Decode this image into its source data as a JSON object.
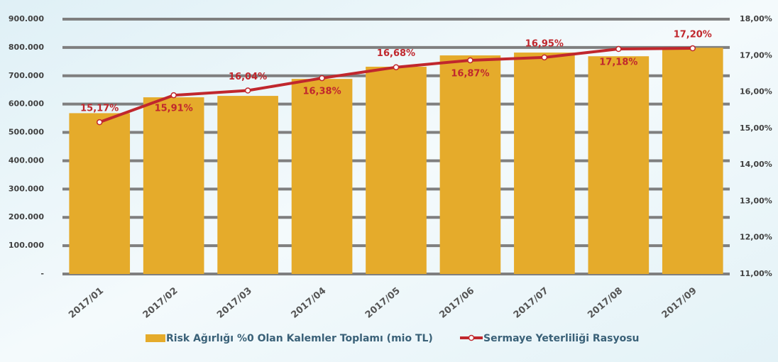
{
  "chart_data": {
    "type": "bar",
    "categories": [
      "2017/01",
      "2017/02",
      "2017/03",
      "2017/04",
      "2017/05",
      "2017/06",
      "2017/07",
      "2017/08",
      "2017/09"
    ],
    "series": [
      {
        "name": "Risk Ağırlığı %0 Olan Kalemler Toplamı (mio TL)",
        "type": "bar",
        "color": "#e5ab2b",
        "values": [
          568000,
          624000,
          629000,
          689000,
          732000,
          772000,
          782000,
          769000,
          799000
        ]
      },
      {
        "name": "Sermaye Yeterliliği Rasyosu",
        "type": "line",
        "axis": "y2",
        "color": "#c0272d",
        "values": [
          15.17,
          15.91,
          16.04,
          16.38,
          16.68,
          16.87,
          16.95,
          17.18,
          17.2
        ],
        "value_labels": [
          "15,17%",
          "15,91%",
          "16,04%",
          "16,38%",
          "16,68%",
          "16,87%",
          "16,95%",
          "17,18%",
          "17,20%"
        ]
      }
    ],
    "ylim": [
      0,
      900000
    ],
    "yticks": [
      {
        "value": 0,
        "label": "-"
      },
      {
        "value": 100000,
        "label": "100.000"
      },
      {
        "value": 200000,
        "label": "200.000"
      },
      {
        "value": 300000,
        "label": "300.000"
      },
      {
        "value": 400000,
        "label": "400.000"
      },
      {
        "value": 500000,
        "label": "500.000"
      },
      {
        "value": 600000,
        "label": "600.000"
      },
      {
        "value": 700000,
        "label": "700.000"
      },
      {
        "value": 800000,
        "label": "800.000"
      },
      {
        "value": 900000,
        "label": "900.000"
      }
    ],
    "y2lim": [
      11,
      18
    ],
    "y2ticks": [
      {
        "value": 11,
        "label": "11,00%"
      },
      {
        "value": 12,
        "label": "12,00%"
      },
      {
        "value": 13,
        "label": "13,00%"
      },
      {
        "value": 14,
        "label": "14,00%"
      },
      {
        "value": 15,
        "label": "15,00%"
      },
      {
        "value": 16,
        "label": "16,00%"
      },
      {
        "value": 17,
        "label": "17,00%"
      },
      {
        "value": 18,
        "label": "18,00%"
      }
    ],
    "grid": true
  }
}
